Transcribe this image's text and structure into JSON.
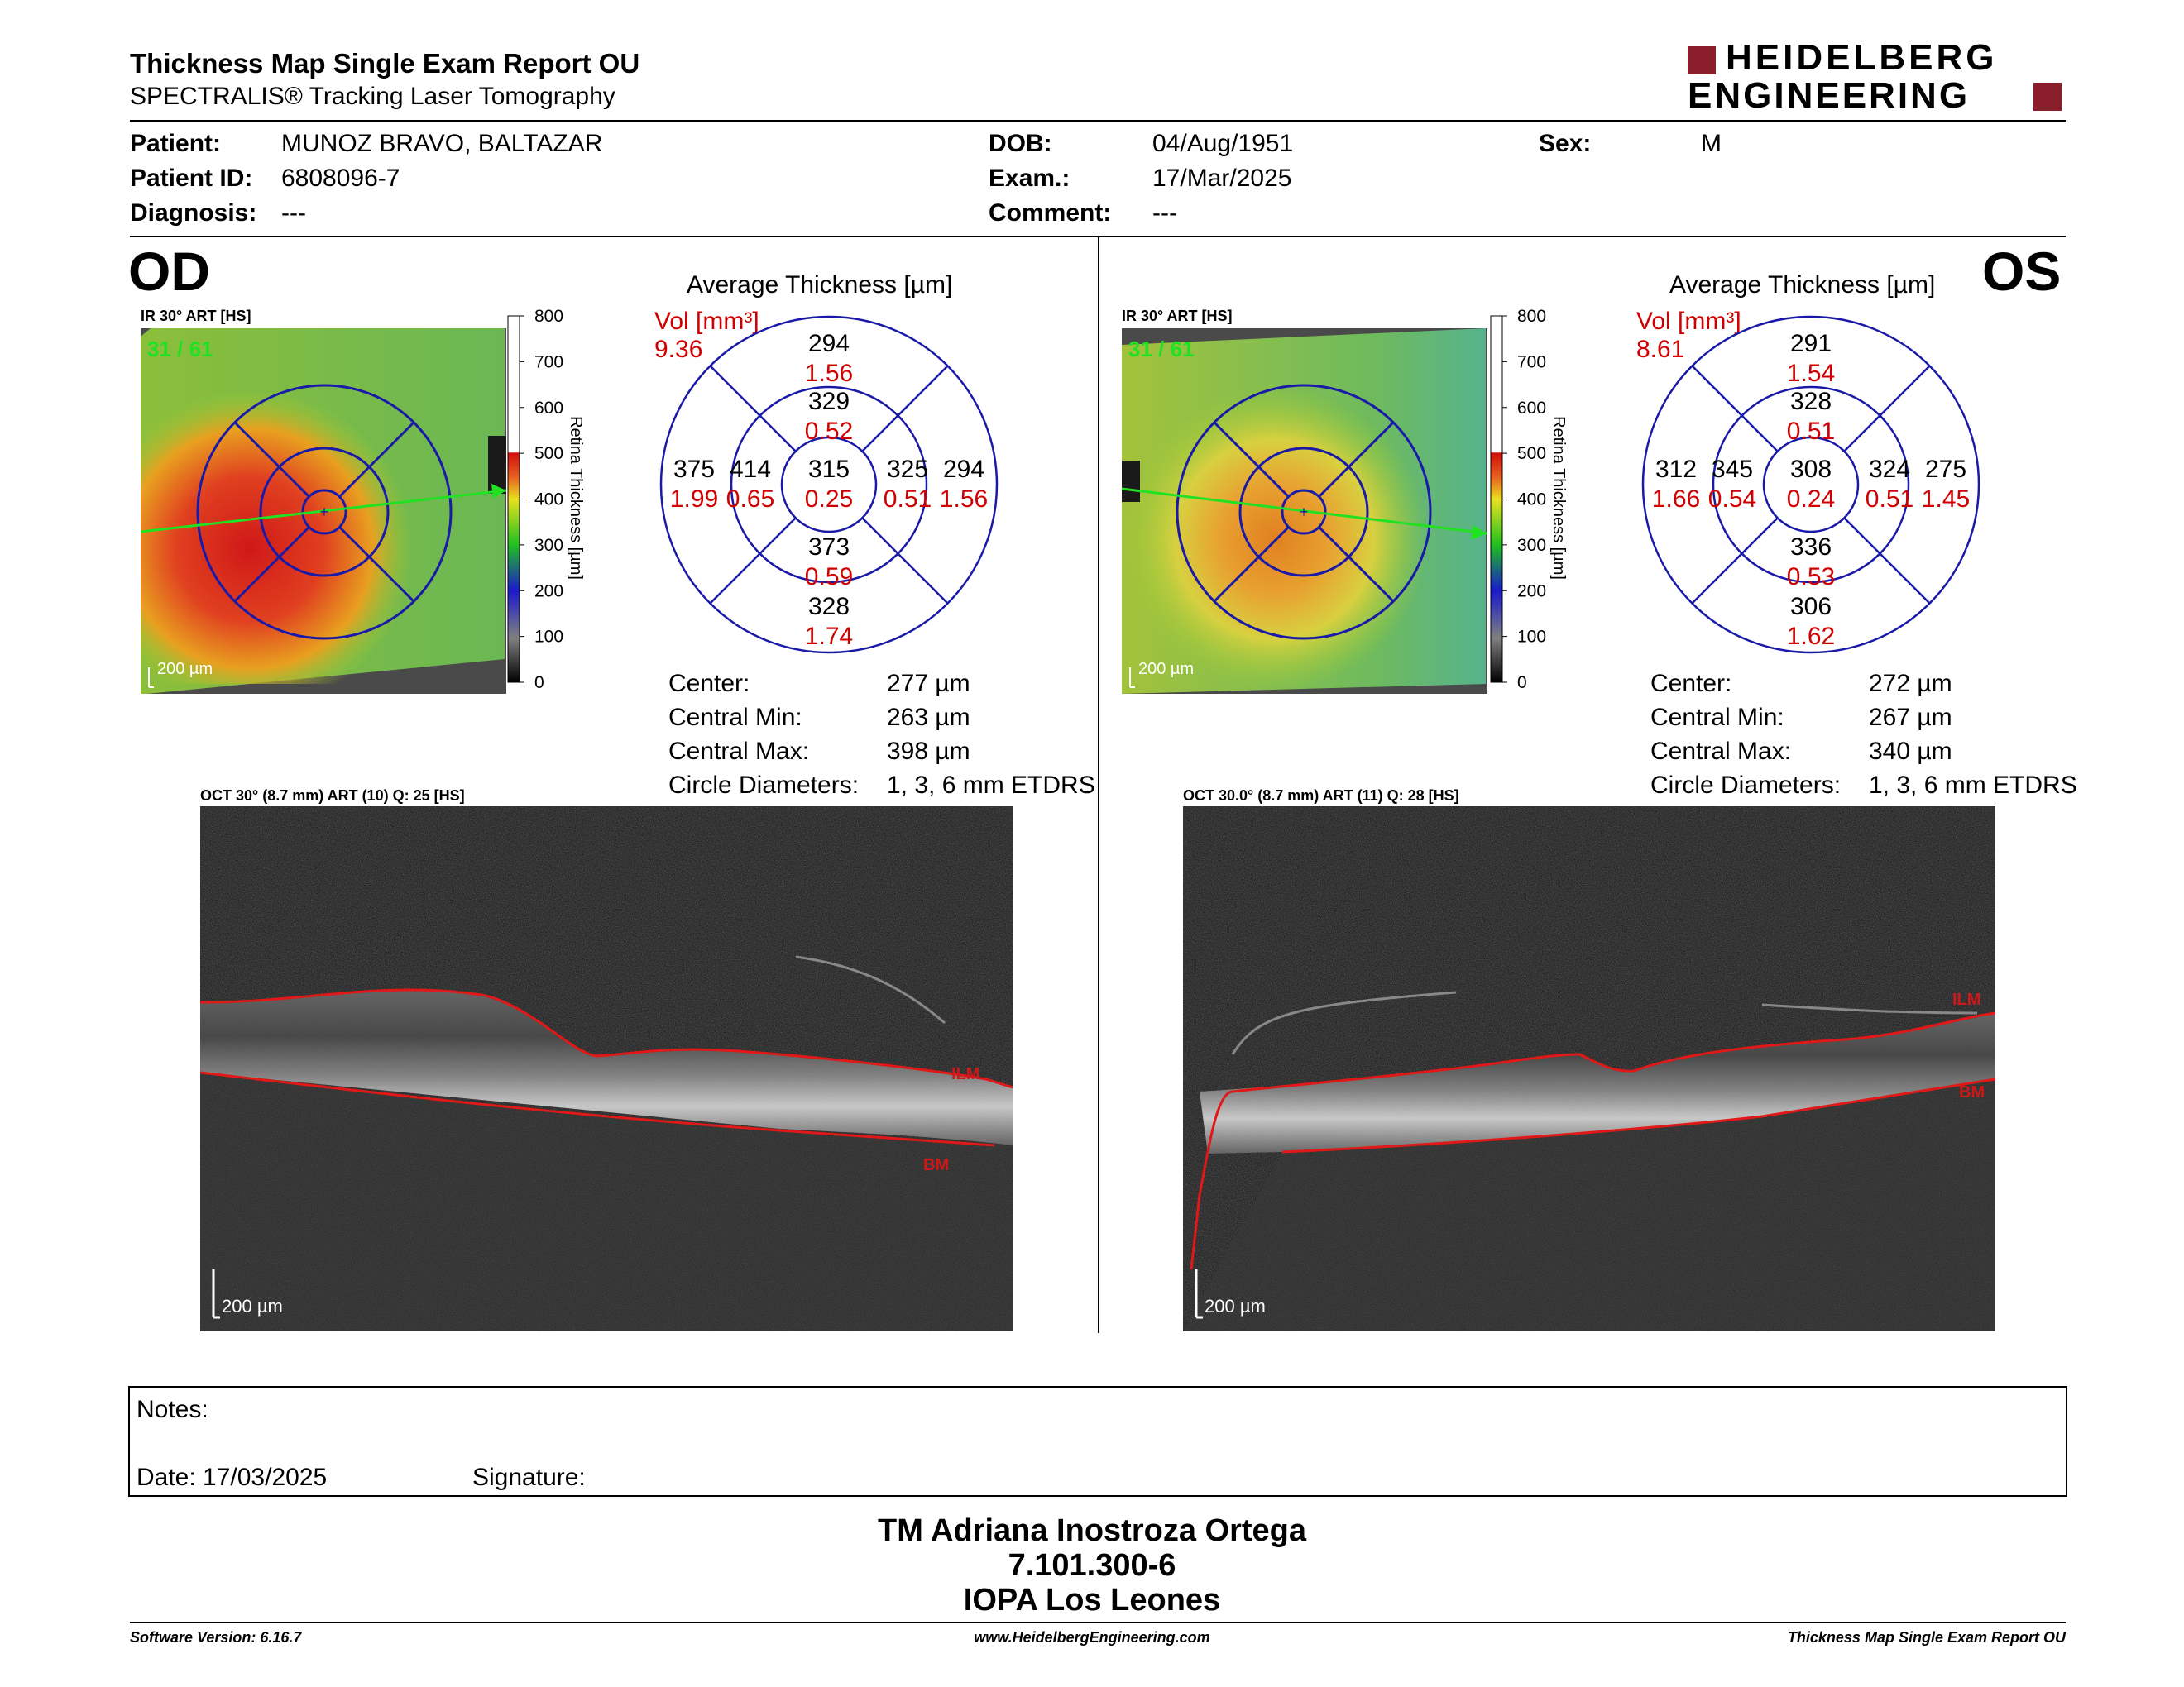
{
  "header": {
    "title": "Thickness Map Single Exam Report OU",
    "subtitle": "SPECTRALIS® Tracking Laser Tomography",
    "logo_line1": "HEIDELBERG",
    "logo_line2": "ENGINEERING",
    "brand_color": "#8b1e2b"
  },
  "patient": {
    "patient_label": "Patient:",
    "patient_value": "MUNOZ BRAVO, BALTAZAR",
    "id_label": "Patient ID:",
    "id_value": "6808096-7",
    "diagnosis_label": "Diagnosis:",
    "diagnosis_value": "---",
    "dob_label": "DOB:",
    "dob_value": "04/Aug/1951",
    "exam_label": "Exam.:",
    "exam_value": "17/Mar/2025",
    "comment_label": "Comment:",
    "comment_value": "---",
    "sex_label": "Sex:",
    "sex_value": "M"
  },
  "od": {
    "eye": "OD",
    "ir_label": "IR 30° ART [HS]",
    "frames": "31 / 61",
    "scale_text": "200 µm",
    "avg_title": "Average Thickness [µm]",
    "vol_label": "Vol [mm³]",
    "vol_total": "9.36",
    "sectors": {
      "outer_sup": [
        "294",
        "1.56"
      ],
      "inner_sup": [
        "329",
        "0.52"
      ],
      "outer_temp_left": [
        "375",
        "1.99"
      ],
      "inner_left": [
        "414",
        "0.65"
      ],
      "center": [
        "315",
        "0.25"
      ],
      "inner_right": [
        "325",
        "0.51"
      ],
      "outer_right": [
        "294",
        "1.56"
      ],
      "inner_inf": [
        "373",
        "0.59"
      ],
      "outer_inf": [
        "328",
        "1.74"
      ]
    },
    "stats": {
      "center_label": "Center:",
      "center_value": "277 µm",
      "min_label": "Central Min:",
      "min_value": "263 µm",
      "max_label": "Central Max:",
      "max_value": "398 µm",
      "diam_label": "Circle Diameters:",
      "diam_value": "1, 3, 6 mm ETDRS"
    },
    "oct_label": "OCT 30° (8.7 mm) ART (10) Q: 25 [HS]",
    "oct_scale": "200 µm",
    "ilm": "ILM",
    "bm": "BM"
  },
  "os": {
    "eye": "OS",
    "ir_label": "IR 30° ART [HS]",
    "frames": "31 / 61",
    "scale_text": "200 µm",
    "avg_title": "Average Thickness [µm]",
    "vol_label": "Vol [mm³]",
    "vol_total": "8.61",
    "sectors": {
      "outer_sup": [
        "291",
        "1.54"
      ],
      "inner_sup": [
        "328",
        "0.51"
      ],
      "outer_temp_left": [
        "312",
        "1.66"
      ],
      "inner_left": [
        "345",
        "0.54"
      ],
      "center": [
        "308",
        "0.24"
      ],
      "inner_right": [
        "324",
        "0.51"
      ],
      "outer_right": [
        "275",
        "1.45"
      ],
      "inner_inf": [
        "336",
        "0.53"
      ],
      "outer_inf": [
        "306",
        "1.62"
      ]
    },
    "stats": {
      "center_label": "Center:",
      "center_value": "272 µm",
      "min_label": "Central Min:",
      "min_value": "267 µm",
      "max_label": "Central Max:",
      "max_value": "340 µm",
      "diam_label": "Circle Diameters:",
      "diam_value": "1, 3, 6 mm ETDRS"
    },
    "oct_label": "OCT 30.0° (8.7 mm) ART (11) Q: 28 [HS]",
    "oct_scale": "200 µm",
    "ilm": "ILM",
    "bm": "BM"
  },
  "colorbar": {
    "ticks": [
      "800",
      "700",
      "600",
      "500",
      "400",
      "300",
      "200",
      "100",
      "0"
    ],
    "title": "Retina Thickness [µm]"
  },
  "notes": {
    "notes_label": "Notes:",
    "date_label": "Date: 17/03/2025",
    "signature_label": "Signature:"
  },
  "footer_block": {
    "name": "TM Adriana Inostroza Ortega",
    "rut": "7.101.300-6",
    "clinic": "IOPA Los Leones"
  },
  "footer": {
    "software": "Software Version: 6.16.7",
    "url": "www.HeidelbergEngineering.com",
    "report": "Thickness Map Single Exam Report OU"
  }
}
